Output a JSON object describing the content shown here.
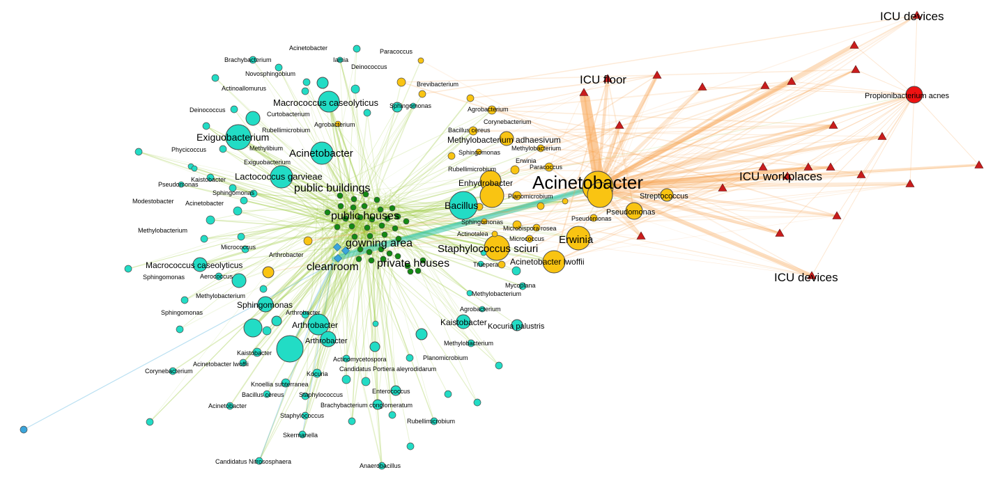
{
  "colors": {
    "clinical_node": "#f9c412",
    "environment_node": "#22dcc5",
    "cleanroom_node": "#3aa5db",
    "house_node": "#138a13",
    "icu_node": "#c91c1c",
    "highlight_node": "#ee1212",
    "edge_green": "#99c83a",
    "edge_orange": "#f7a04a",
    "edge_teal": "#33c5a5",
    "label_green": "#119b11",
    "label_blue": "#1638d6",
    "label_cyan": "#27c3e6",
    "label_red": "#e01616",
    "label_orange": "#f27d10"
  },
  "categories": {
    "icu_floor": "ICU floor",
    "icu_devices_top": "ICU devices",
    "icu_workplaces": "ICU workplaces",
    "icu_devices_bottom": "ICU devices",
    "public_buildings": "public buildings",
    "public_houses": "public houses",
    "gowning_area": "gowning area",
    "cleanroom": "cleanroom",
    "private_houses": "private houses"
  },
  "taxa": {
    "t1": "Acinetobacter",
    "t2": "Pseudomonas",
    "t3": "Streptococcus",
    "t4": "Propionibacterium acnes",
    "t5": "Erwinia",
    "t6": "Staphylococcus sciuri",
    "t7": "Acinetobacter lwoffii",
    "t8": "Enhydrobacter",
    "t9": "Bacillus",
    "t10": "Methylobacterium adhaesivum",
    "t11": "Exiguobacterium",
    "t12": "Acinetobacter",
    "t13": "Lactococcus garvieae",
    "t14": "Macrococcus caseolyticus",
    "t15": "Macrococcus caseolyticus",
    "t16": "Sphingomonas",
    "t17": "Arthrobacter",
    "t18": "Arthrobacter",
    "t19": "Acinetobacter",
    "t20": "Brachybacterium",
    "t21": "Iamia",
    "t22": "Paracoccus",
    "t23": "Deinococcus",
    "t24": "Novosphingobium",
    "t25": "Actinoallomurus",
    "t26": "Brevibacterium",
    "t27": "Sphingomonas",
    "t28": "Deinococcus",
    "t29": "Curtobacterium",
    "t30": "Agrobacterium",
    "t31": "Corynebacterium",
    "t32": "Rubellimicrobium",
    "t33": "Agrobacterium",
    "t34": "Bacillus cereus",
    "t35": "Methylibium",
    "t36": "Phycicoccus",
    "t37": "Exiguobacterium",
    "t38": "Sphingomonas",
    "t39": "Methylobacterium",
    "t40": "Erwinia",
    "t41": "Kaistobacter",
    "t42": "Rubellimicrobium",
    "t43": "Paracoccus",
    "t44": "Pseudomonas",
    "t45": "Sphingomonas",
    "t46": "Modestobacter",
    "t47": "Acinetobacter",
    "t48": "Planomicrobium",
    "t49": "Pseudomonas",
    "t50": "Sphingomonas",
    "t51": "Methylobacterium",
    "t52": "Microbispora rosea",
    "t53": "Actinotalea",
    "t54": "Micrococcus",
    "t55": "Micrococcus",
    "t56": "Arthrobacter",
    "t57": "Truepera",
    "t58": "Sphingomonas",
    "t59": "Aerococcus",
    "t60": "Mycoplana",
    "t61": "Methylobacterium",
    "t62": "Methylobacterium",
    "t63": "Arthrobacter",
    "t64": "Agrobacterium",
    "t65": "Sphingomonas",
    "t66": "Kaistobacter",
    "t67": "Kocuria palustris",
    "t68": "Methylobacterium",
    "t69": "Kaistobacter",
    "t70": "Acinetobacter lwoffii",
    "t71": "Actinomycetospora",
    "t72": "Planomicrobium",
    "t73": "Corynebacterium",
    "t74": "Kocuria",
    "t75": "Candidatus Portiera aleyrodidarum",
    "t76": "Knoellia subterranea",
    "t77": "Enterococcus",
    "t78": "Bacillus cereus",
    "t79": "Staphylococcus",
    "t80": "Acinetobacter",
    "t81": "Brachybacterium conglomeratum",
    "t82": "Staphylococcus",
    "t83": "Rubellimicrobium",
    "t84": "Skermanella",
    "t85": "Candidatus Nitrososphaera",
    "t86": "Anaerobacillus"
  }
}
